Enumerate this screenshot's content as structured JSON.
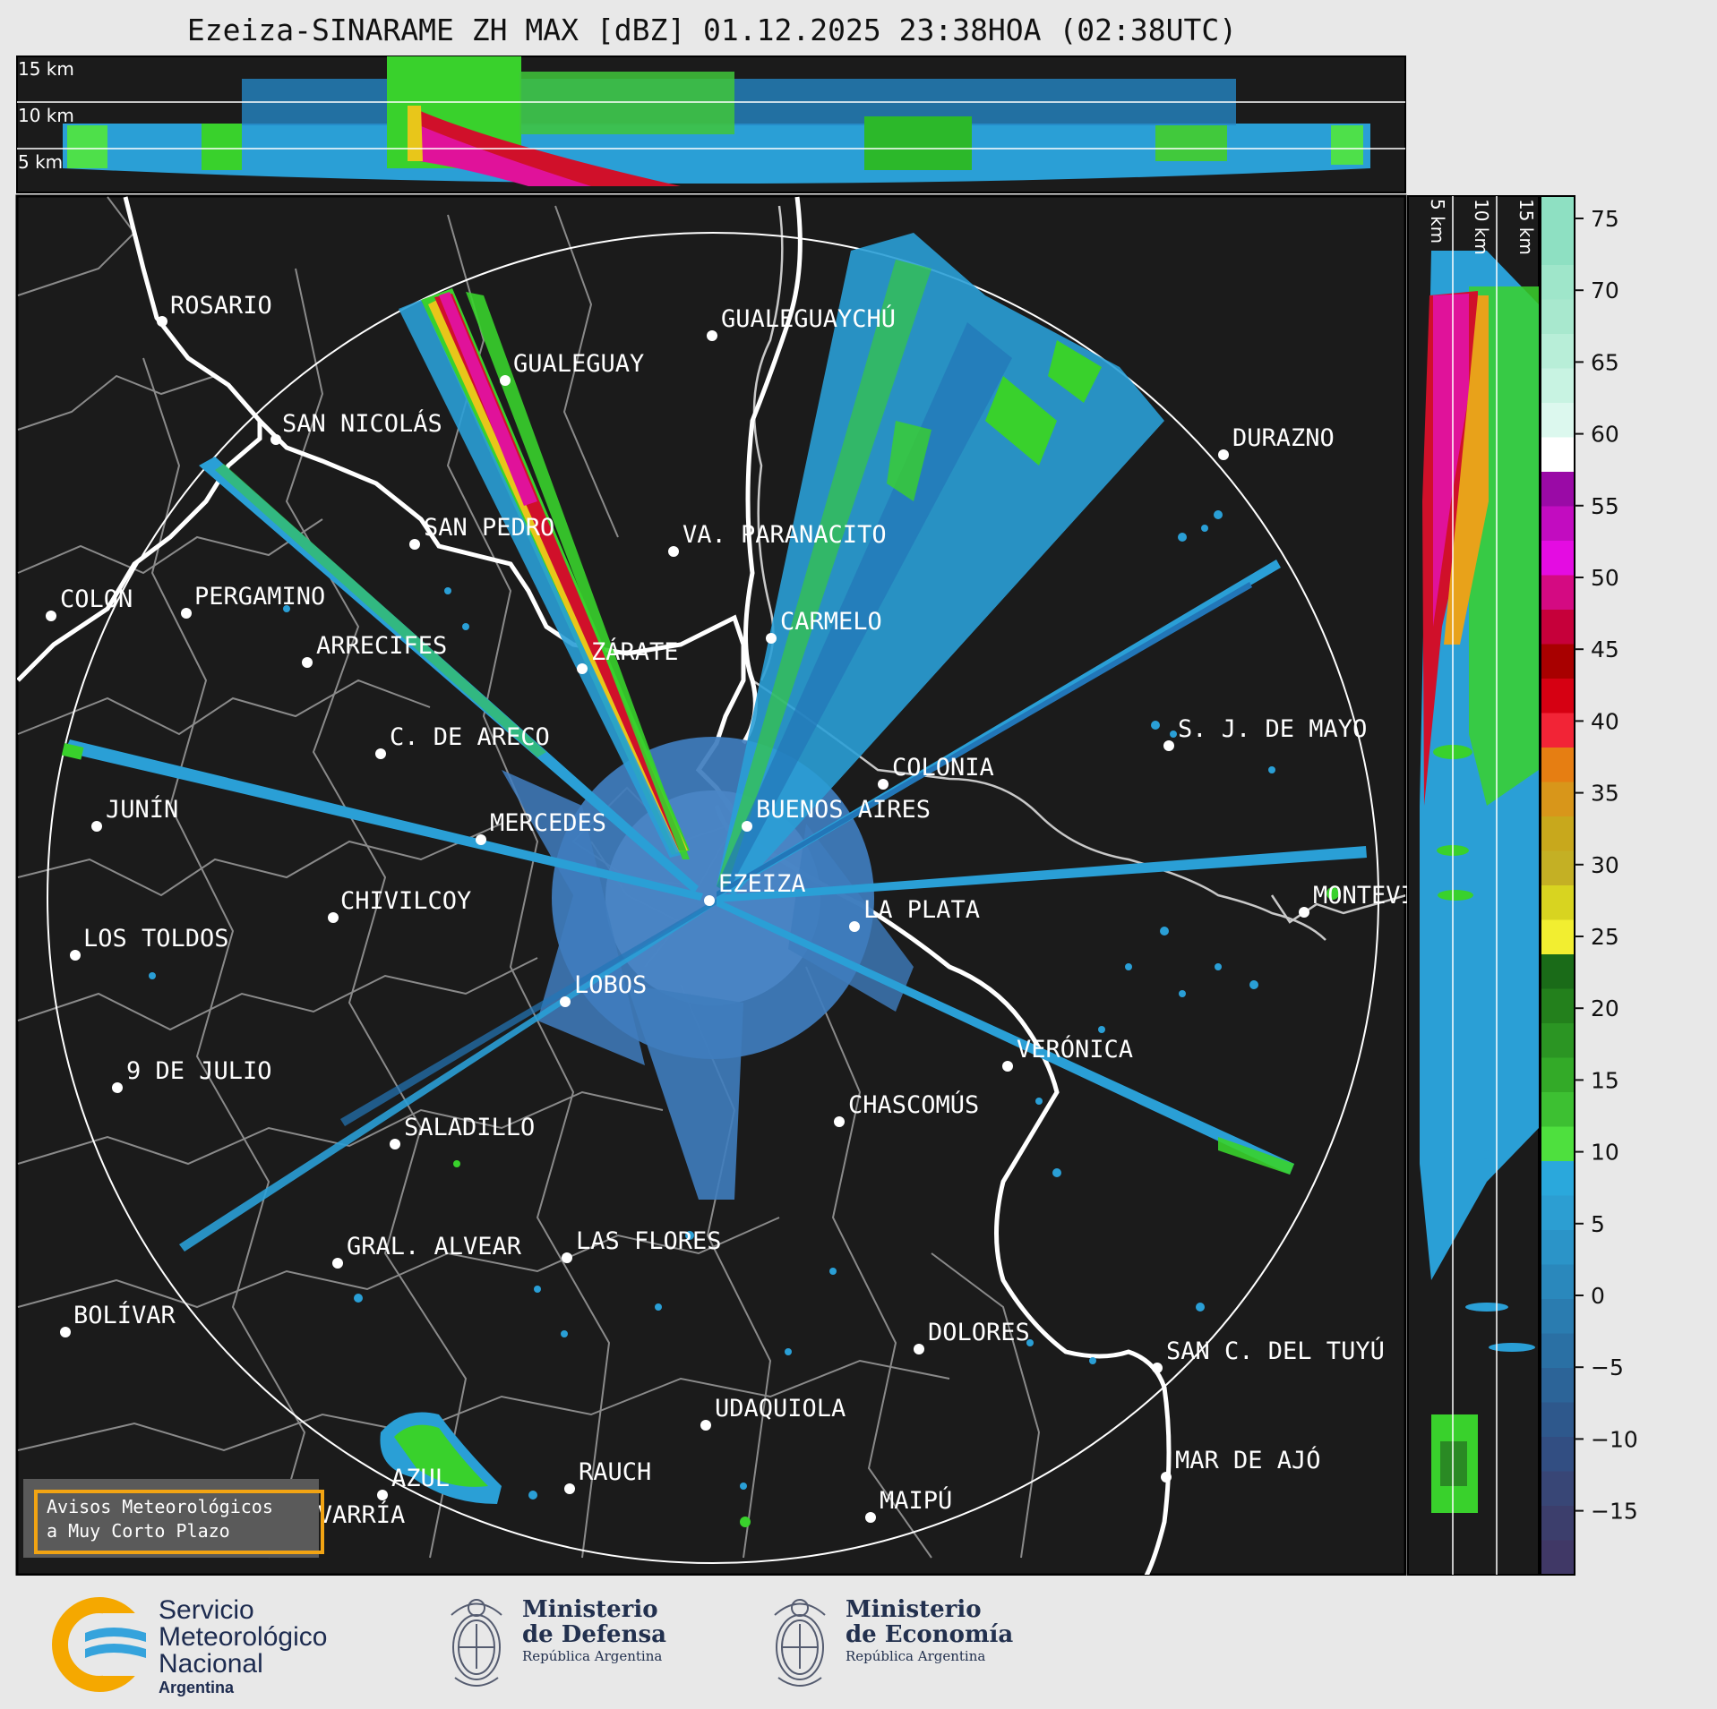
{
  "title": "Ezeiza-SINARAME ZH MAX [dBZ] 01.12.2025 23:38HOA (02:38UTC)",
  "height_panels": {
    "top_labels": [
      "15 km",
      "10 km",
      "5 km"
    ],
    "side_labels": [
      "5 km",
      "10 km",
      "15 km"
    ]
  },
  "colorbar": {
    "ticks": [
      "75",
      "70",
      "65",
      "60",
      "55",
      "50",
      "45",
      "40",
      "35",
      "30",
      "25",
      "20",
      "15",
      "10",
      "5",
      "0",
      "−5",
      "−10",
      "−15"
    ]
  },
  "cities": [
    {
      "name": "ROSARIO"
    },
    {
      "name": "GUALEGUAYCHÚ"
    },
    {
      "name": "GUALEGUAY"
    },
    {
      "name": "SAN NICOLÁS"
    },
    {
      "name": "DURAZNO"
    },
    {
      "name": "SAN PEDRO"
    },
    {
      "name": "VA. PARANACITO"
    },
    {
      "name": "COLON"
    },
    {
      "name": "PERGAMINO"
    },
    {
      "name": "CARMELO"
    },
    {
      "name": "ARRECIFES"
    },
    {
      "name": "ZÁRATE"
    },
    {
      "name": "C. DE ARECO"
    },
    {
      "name": "S. J. DE MAYO"
    },
    {
      "name": "COLONIA"
    },
    {
      "name": "JUNÍN"
    },
    {
      "name": "BUENOS AIRES"
    },
    {
      "name": "MERCEDES"
    },
    {
      "name": "EZEIZA"
    },
    {
      "name": "MONTEVIDEO"
    },
    {
      "name": "CHIVILCOY"
    },
    {
      "name": "LA PLATA"
    },
    {
      "name": "LOS TOLDOS"
    },
    {
      "name": "LOBOS"
    },
    {
      "name": "VERÓNICA"
    },
    {
      "name": "9 DE JULIO"
    },
    {
      "name": "CHASCOMÚS"
    },
    {
      "name": "SALADILLO"
    },
    {
      "name": "GRAL. ALVEAR"
    },
    {
      "name": "LAS FLORES"
    },
    {
      "name": "BOLÍVAR"
    },
    {
      "name": "DOLORES"
    },
    {
      "name": "SAN C. DEL TUYÚ"
    },
    {
      "name": "UDAQUIOLA"
    },
    {
      "name": "MAR DE AJÓ"
    },
    {
      "name": "RAUCH"
    },
    {
      "name": "AZUL"
    },
    {
      "name": "MAIPÚ"
    },
    {
      "name": "OLAVARRÍA"
    }
  ],
  "warning_box": {
    "line1": "Avisos Meteorológicos",
    "line2": "a Muy Corto Plazo"
  },
  "footer": {
    "smn": {
      "line1": "Servicio",
      "line2": "Meteorológico",
      "line3": "Nacional",
      "line4": "Argentina"
    },
    "defensa": {
      "name1": "Ministerio",
      "name2": "de Defensa",
      "sub": "República Argentina"
    },
    "economia": {
      "name1": "Ministerio",
      "name2": "de Economía",
      "sub": "República Argentina"
    }
  },
  "colors": {
    "panel_bg": "#1b1b1b",
    "echo_blue": "#2a9fd6",
    "echo_green": "#39d12c",
    "echo_red": "#d0102a",
    "echo_magenta": "#e0129a",
    "warning_border": "#f2a413",
    "smn_orange": "#f5a800",
    "smn_blue": "#35a3dc"
  }
}
